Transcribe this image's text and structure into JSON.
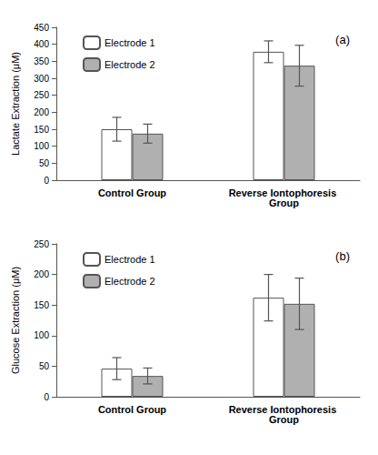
{
  "chart_data": [
    {
      "type": "bar",
      "title": "(a)",
      "ylabel": "Lactate Extraction (μM)",
      "categories": [
        "Control Group",
        "Reverse Iontophoresis Group"
      ],
      "series": [
        {
          "name": "Electrode 1",
          "color": "#ffffff",
          "values": [
            150,
            378
          ],
          "errors": [
            35,
            32
          ]
        },
        {
          "name": "Electrode 2",
          "color": "#b0b0b0",
          "values": [
            137,
            337
          ],
          "errors": [
            28,
            60
          ]
        }
      ],
      "ylim": [
        0,
        450
      ],
      "yticks": [
        0,
        50,
        100,
        150,
        200,
        250,
        300,
        350,
        400,
        450
      ],
      "grid": false,
      "legend": "upper left"
    },
    {
      "type": "bar",
      "title": "(b)",
      "ylabel": "Glucose Extraction (μM)",
      "categories": [
        "Control Group",
        "Reverse Iontophoresis Group"
      ],
      "series": [
        {
          "name": "Electrode 1",
          "color": "#ffffff",
          "values": [
            46,
            162
          ],
          "errors": [
            18,
            38
          ]
        },
        {
          "name": "Electrode 2",
          "color": "#b0b0b0",
          "values": [
            34,
            152
          ],
          "errors": [
            13,
            42
          ]
        }
      ],
      "ylim": [
        0,
        250
      ],
      "yticks": [
        0,
        50,
        100,
        150,
        200,
        250
      ],
      "grid": false,
      "legend": "upper left"
    }
  ]
}
